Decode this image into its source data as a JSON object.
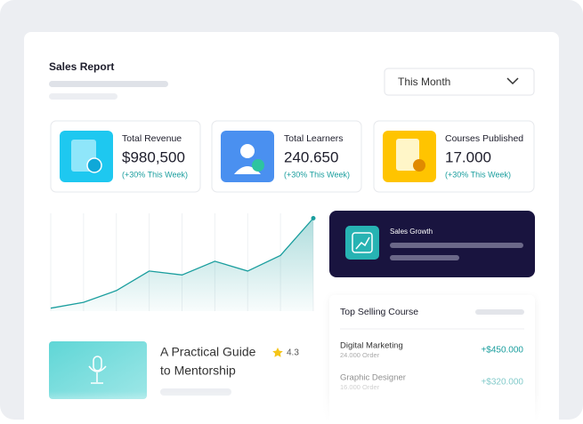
{
  "header": {
    "title": "Sales Report",
    "filter": "This Month"
  },
  "stats": [
    {
      "title": "Total Revenue",
      "value": "$980,500",
      "change": "(+30% This Week)"
    },
    {
      "title": "Total Learners",
      "value": "240.650",
      "change": "(+30% This Week)"
    },
    {
      "title": "Courses Published",
      "value": "17.000",
      "change": "(+30% This Week)"
    }
  ],
  "sales_chart": {
    "type": "line",
    "values": [
      3,
      9,
      21,
      41,
      37,
      51,
      41,
      57,
      95
    ],
    "ylim": [
      0,
      100
    ],
    "color": "#1a9e9e"
  },
  "sales_growth": {
    "title": "Sales Growth"
  },
  "top_selling": {
    "title": "Top Selling Course",
    "rows": [
      {
        "name": "Digital Marketing",
        "orders": "24.000 Order",
        "amount": "+$450.000"
      },
      {
        "name": "Graphic Designer",
        "orders": "16.000 Order",
        "amount": "+$320.000"
      }
    ]
  },
  "guide": {
    "title_line1": "A Practical Guide",
    "title_line2": "to Mentorship",
    "rating": "4.3"
  }
}
